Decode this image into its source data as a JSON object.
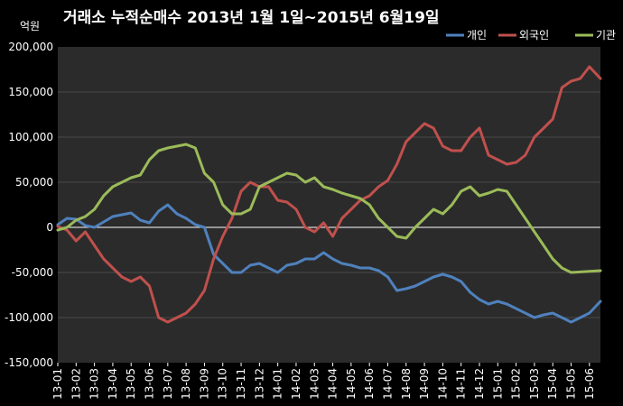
{
  "chart_data": {
    "type": "line",
    "title": "거래소 누적순매수 2013년 1월 1일~2015년 6월19일",
    "ylabel": "억원",
    "xlabel": "",
    "ylim": [
      -150000,
      200000
    ],
    "yticks": [
      {
        "value": 200000,
        "label": "200,000"
      },
      {
        "value": 150000,
        "label": "150,000"
      },
      {
        "value": 100000,
        "label": "100,000"
      },
      {
        "value": 50000,
        "label": "50,000"
      },
      {
        "value": 0,
        "label": "0"
      },
      {
        "value": -50000,
        "label": "-50,000"
      },
      {
        "value": -100000,
        "label": "-100,000"
      },
      {
        "value": -150000,
        "label": "-150,000"
      }
    ],
    "categories": [
      "13-01",
      "13-02",
      "13-03",
      "13-04",
      "13-05",
      "13-06",
      "13-07",
      "13-08",
      "13-09",
      "13-10",
      "13-11",
      "13-12",
      "14-01",
      "14-02",
      "14-03",
      "14-04",
      "14-05",
      "14-06",
      "14-07",
      "14-08",
      "14-09",
      "14-10",
      "14-11",
      "14-12",
      "15-01",
      "15-02",
      "15-03",
      "15-04",
      "15-05",
      "15-06"
    ],
    "x_end": 29.6,
    "legend_position": "top-right",
    "grid": "horizontal",
    "series": [
      {
        "name": "개인",
        "color": "#4f81bd",
        "points": [
          [
            0,
            3000
          ],
          [
            0.5,
            10000
          ],
          [
            1,
            9000
          ],
          [
            1.5,
            2000
          ],
          [
            2,
            0
          ],
          [
            2.5,
            6000
          ],
          [
            3,
            12000
          ],
          [
            3.5,
            14000
          ],
          [
            4,
            16000
          ],
          [
            4.5,
            8000
          ],
          [
            5,
            5000
          ],
          [
            5.5,
            18000
          ],
          [
            6,
            25000
          ],
          [
            6.5,
            15000
          ],
          [
            7,
            10000
          ],
          [
            7.5,
            3000
          ],
          [
            8,
            0
          ],
          [
            8.5,
            -30000
          ],
          [
            9,
            -40000
          ],
          [
            9.5,
            -50000
          ],
          [
            10,
            -50000
          ],
          [
            10.5,
            -42000
          ],
          [
            11,
            -40000
          ],
          [
            11.5,
            -45000
          ],
          [
            12,
            -50000
          ],
          [
            12.5,
            -42000
          ],
          [
            13,
            -40000
          ],
          [
            13.5,
            -35000
          ],
          [
            14,
            -35000
          ],
          [
            14.5,
            -28000
          ],
          [
            15,
            -35000
          ],
          [
            15.5,
            -40000
          ],
          [
            16,
            -42000
          ],
          [
            16.5,
            -45000
          ],
          [
            17,
            -45000
          ],
          [
            17.5,
            -48000
          ],
          [
            18,
            -55000
          ],
          [
            18.5,
            -70000
          ],
          [
            19,
            -68000
          ],
          [
            19.5,
            -65000
          ],
          [
            20,
            -60000
          ],
          [
            20.5,
            -55000
          ],
          [
            21,
            -52000
          ],
          [
            21.5,
            -55000
          ],
          [
            22,
            -60000
          ],
          [
            22.5,
            -72000
          ],
          [
            23,
            -80000
          ],
          [
            23.5,
            -85000
          ],
          [
            24,
            -82000
          ],
          [
            24.5,
            -85000
          ],
          [
            25,
            -90000
          ],
          [
            25.5,
            -95000
          ],
          [
            26,
            -100000
          ],
          [
            26.5,
            -97000
          ],
          [
            27,
            -95000
          ],
          [
            27.5,
            -100000
          ],
          [
            28,
            -105000
          ],
          [
            28.5,
            -100000
          ],
          [
            29,
            -95000
          ],
          [
            29.6,
            -82000
          ]
        ]
      },
      {
        "name": "외국인",
        "color": "#c0504d",
        "points": [
          [
            0,
            1000
          ],
          [
            0.5,
            -3000
          ],
          [
            1,
            -15000
          ],
          [
            1.5,
            -5000
          ],
          [
            2,
            -20000
          ],
          [
            2.5,
            -35000
          ],
          [
            3,
            -45000
          ],
          [
            3.5,
            -55000
          ],
          [
            4,
            -60000
          ],
          [
            4.5,
            -55000
          ],
          [
            5,
            -65000
          ],
          [
            5.5,
            -100000
          ],
          [
            6,
            -105000
          ],
          [
            6.5,
            -100000
          ],
          [
            7,
            -95000
          ],
          [
            7.5,
            -85000
          ],
          [
            8,
            -70000
          ],
          [
            8.5,
            -35000
          ],
          [
            9,
            -10000
          ],
          [
            9.5,
            10000
          ],
          [
            10,
            40000
          ],
          [
            10.5,
            50000
          ],
          [
            11,
            45000
          ],
          [
            11.5,
            45000
          ],
          [
            12,
            30000
          ],
          [
            12.5,
            28000
          ],
          [
            13,
            20000
          ],
          [
            13.5,
            0
          ],
          [
            14,
            -5000
          ],
          [
            14.5,
            5000
          ],
          [
            15,
            -10000
          ],
          [
            15.5,
            10000
          ],
          [
            16,
            20000
          ],
          [
            16.5,
            30000
          ],
          [
            17,
            35000
          ],
          [
            17.5,
            45000
          ],
          [
            18,
            52000
          ],
          [
            18.5,
            70000
          ],
          [
            19,
            95000
          ],
          [
            19.5,
            105000
          ],
          [
            20,
            115000
          ],
          [
            20.5,
            110000
          ],
          [
            21,
            90000
          ],
          [
            21.5,
            85000
          ],
          [
            22,
            85000
          ],
          [
            22.5,
            100000
          ],
          [
            23,
            110000
          ],
          [
            23.5,
            80000
          ],
          [
            24,
            75000
          ],
          [
            24.5,
            70000
          ],
          [
            25,
            72000
          ],
          [
            25.5,
            80000
          ],
          [
            26,
            100000
          ],
          [
            26.5,
            110000
          ],
          [
            27,
            120000
          ],
          [
            27.5,
            155000
          ],
          [
            28,
            162000
          ],
          [
            28.5,
            165000
          ],
          [
            29,
            178000
          ],
          [
            29.6,
            165000
          ]
        ]
      },
      {
        "name": "기관",
        "color": "#9bbb59",
        "points": [
          [
            0,
            -3000
          ],
          [
            0.5,
            0
          ],
          [
            1,
            8000
          ],
          [
            1.5,
            12000
          ],
          [
            2,
            20000
          ],
          [
            2.5,
            35000
          ],
          [
            3,
            45000
          ],
          [
            3.5,
            50000
          ],
          [
            4,
            55000
          ],
          [
            4.5,
            58000
          ],
          [
            5,
            75000
          ],
          [
            5.5,
            85000
          ],
          [
            6,
            88000
          ],
          [
            6.5,
            90000
          ],
          [
            7,
            92000
          ],
          [
            7.5,
            88000
          ],
          [
            8,
            60000
          ],
          [
            8.5,
            50000
          ],
          [
            9,
            25000
          ],
          [
            9.5,
            15000
          ],
          [
            10,
            15000
          ],
          [
            10.5,
            20000
          ],
          [
            11,
            45000
          ],
          [
            11.5,
            50000
          ],
          [
            12,
            55000
          ],
          [
            12.5,
            60000
          ],
          [
            13,
            58000
          ],
          [
            13.5,
            50000
          ],
          [
            14,
            55000
          ],
          [
            14.5,
            45000
          ],
          [
            15,
            42000
          ],
          [
            15.5,
            38000
          ],
          [
            16,
            35000
          ],
          [
            16.5,
            32000
          ],
          [
            17,
            25000
          ],
          [
            17.5,
            10000
          ],
          [
            18,
            0
          ],
          [
            18.5,
            -10000
          ],
          [
            19,
            -12000
          ],
          [
            19.5,
            0
          ],
          [
            20,
            10000
          ],
          [
            20.5,
            20000
          ],
          [
            21,
            15000
          ],
          [
            21.5,
            25000
          ],
          [
            22,
            40000
          ],
          [
            22.5,
            45000
          ],
          [
            23,
            35000
          ],
          [
            23.5,
            38000
          ],
          [
            24,
            42000
          ],
          [
            24.5,
            40000
          ],
          [
            25,
            25000
          ],
          [
            25.5,
            10000
          ],
          [
            26,
            -5000
          ],
          [
            26.5,
            -20000
          ],
          [
            27,
            -35000
          ],
          [
            27.5,
            -45000
          ],
          [
            28,
            -50000
          ],
          [
            29.6,
            -48000
          ]
        ]
      }
    ]
  }
}
